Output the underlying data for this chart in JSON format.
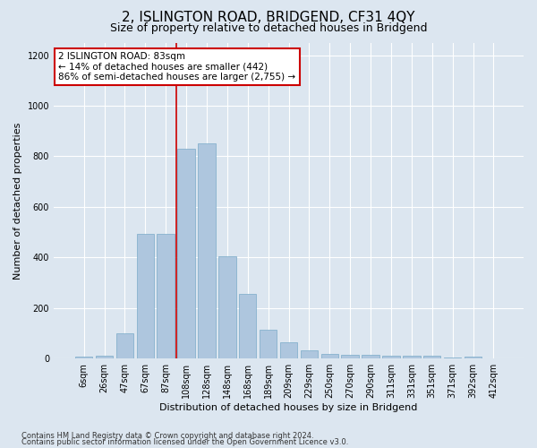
{
  "title": "2, ISLINGTON ROAD, BRIDGEND, CF31 4QY",
  "subtitle": "Size of property relative to detached houses in Bridgend",
  "xlabel": "Distribution of detached houses by size in Bridgend",
  "ylabel": "Number of detached properties",
  "categories": [
    "6sqm",
    "26sqm",
    "47sqm",
    "67sqm",
    "87sqm",
    "108sqm",
    "128sqm",
    "148sqm",
    "168sqm",
    "189sqm",
    "209sqm",
    "229sqm",
    "250sqm",
    "270sqm",
    "290sqm",
    "311sqm",
    "331sqm",
    "351sqm",
    "371sqm",
    "392sqm",
    "412sqm"
  ],
  "values": [
    8,
    12,
    100,
    495,
    495,
    830,
    850,
    405,
    255,
    115,
    65,
    32,
    20,
    14,
    14,
    10,
    10,
    10,
    5,
    7,
    0
  ],
  "bar_color": "#aec6de",
  "bar_edge_color": "#7aaac8",
  "highlight_index": 4,
  "annotation_text": "2 ISLINGTON ROAD: 83sqm\n← 14% of detached houses are smaller (442)\n86% of semi-detached houses are larger (2,755) →",
  "annotation_box_color": "#ffffff",
  "annotation_box_edge": "#cc0000",
  "red_line_color": "#cc0000",
  "ylim": [
    0,
    1250
  ],
  "yticks": [
    0,
    200,
    400,
    600,
    800,
    1000,
    1200
  ],
  "footer1": "Contains HM Land Registry data © Crown copyright and database right 2024.",
  "footer2": "Contains public sector information licensed under the Open Government Licence v3.0.",
  "bg_color": "#dce6f0",
  "plot_bg_color": "#dce6f0",
  "grid_color": "#ffffff",
  "title_fontsize": 11,
  "subtitle_fontsize": 9,
  "ylabel_fontsize": 8,
  "xlabel_fontsize": 8,
  "tick_fontsize": 7,
  "annotation_fontsize": 7.5,
  "footer_fontsize": 6
}
